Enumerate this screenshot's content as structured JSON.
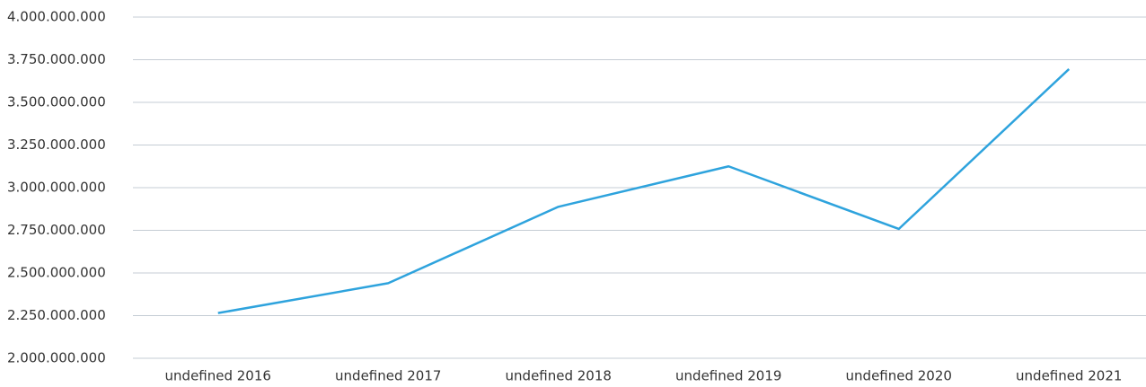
{
  "chart_data": {
    "type": "line",
    "categories": [
      "undefined 2016",
      "undefined 2017",
      "undefined 2018",
      "undefined 2019",
      "undefined 2020",
      "undefined 2021"
    ],
    "series": [
      {
        "name": null,
        "color": "#2ea3dd",
        "values": [
          2265000000,
          2440000000,
          2888000000,
          3125000000,
          2758000000,
          3695000000
        ]
      }
    ],
    "ylim": [
      2000000000,
      4000000000
    ],
    "yticks": [
      {
        "value": 2000000000,
        "label": "2.000.000.000"
      },
      {
        "value": 2250000000,
        "label": "2.250.000.000"
      },
      {
        "value": 2500000000,
        "label": "2.500.000.000"
      },
      {
        "value": 2750000000,
        "label": "2.750.000.000"
      },
      {
        "value": 3000000000,
        "label": "3.000.000.000"
      },
      {
        "value": 3250000000,
        "label": "3.250.000.000"
      },
      {
        "value": 3500000000,
        "label": "3.500.000.000"
      },
      {
        "value": 3750000000,
        "label": "3.750.000.000"
      },
      {
        "value": 4000000000,
        "label": "4.000.000.000"
      }
    ],
    "grid": true
  }
}
